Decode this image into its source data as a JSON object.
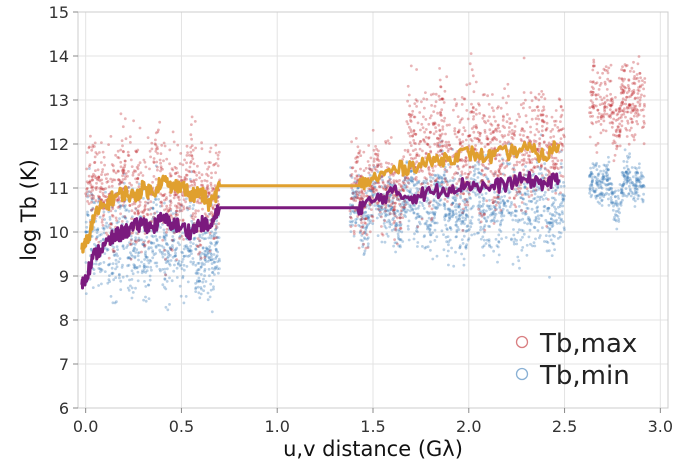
{
  "chart_data": {
    "type": "scatter",
    "xlabel": "u,v distance (Gλ)",
    "ylabel": "log Tb (K)",
    "xlim": [
      -0.04,
      3.04
    ],
    "ylim": [
      6,
      15
    ],
    "xticks": [
      0.0,
      0.5,
      1.0,
      1.5,
      2.0,
      2.5,
      3.0
    ],
    "xtick_labels": [
      "0.0",
      "0.5",
      "1.0",
      "1.5",
      "2.0",
      "2.5",
      "3.0"
    ],
    "yticks": [
      6,
      7,
      8,
      9,
      10,
      11,
      12,
      13,
      14,
      15
    ],
    "ytick_labels": [
      "6",
      "7",
      "8",
      "9",
      "10",
      "11",
      "12",
      "13",
      "14",
      "15"
    ],
    "grid": true,
    "legend_position": "bottom-right",
    "series": [
      {
        "name": "Tb,max",
        "kind": "scatter",
        "color": "#c0282d",
        "clusters": [
          {
            "x": [
              0.0,
              0.7
            ],
            "y_center": 10.9,
            "y_spread": 1.1
          },
          {
            "x": [
              1.38,
              1.68
            ],
            "y_center": 11.0,
            "y_spread": 0.9
          },
          {
            "x": [
              1.68,
              2.5
            ],
            "y_center": 11.9,
            "y_spread": 1.2
          },
          {
            "x": [
              2.63,
              2.92
            ],
            "y_center": 12.9,
            "y_spread": 0.8
          }
        ]
      },
      {
        "name": "Tb,min",
        "kind": "scatter",
        "color": "#3a7bb8",
        "clusters": [
          {
            "x": [
              0.0,
              0.7
            ],
            "y_center": 9.7,
            "y_spread": 1.0
          },
          {
            "x": [
              1.38,
              1.68
            ],
            "y_center": 10.6,
            "y_spread": 0.7
          },
          {
            "x": [
              1.68,
              2.5
            ],
            "y_center": 10.6,
            "y_spread": 0.9
          },
          {
            "x": [
              2.63,
              2.92
            ],
            "y_center": 11.0,
            "y_spread": 0.4
          }
        ]
      },
      {
        "kind": "line",
        "color": "#e0a02f",
        "x": [
          -0.02,
          0.0,
          0.05,
          0.1,
          0.15,
          0.2,
          0.25,
          0.3,
          0.35,
          0.4,
          0.45,
          0.5,
          0.55,
          0.6,
          0.65,
          0.7,
          1.42,
          1.5,
          1.6,
          1.7,
          1.8,
          1.9,
          2.0,
          2.1,
          2.2,
          2.3,
          2.4,
          2.47
        ],
        "y": [
          9.6,
          9.7,
          10.4,
          10.6,
          10.8,
          10.9,
          10.8,
          11.0,
          10.9,
          11.2,
          11.0,
          11.1,
          10.8,
          10.9,
          10.6,
          11.05,
          11.05,
          11.2,
          11.4,
          11.5,
          11.6,
          11.7,
          11.8,
          11.7,
          11.8,
          11.9,
          11.7,
          12.0
        ]
      },
      {
        "kind": "line",
        "color": "#7b1a7e",
        "x": [
          -0.02,
          0.0,
          0.05,
          0.1,
          0.15,
          0.2,
          0.25,
          0.3,
          0.35,
          0.4,
          0.45,
          0.5,
          0.55,
          0.6,
          0.65,
          0.7,
          1.42,
          1.5,
          1.6,
          1.7,
          1.8,
          1.9,
          2.0,
          2.1,
          2.2,
          2.3,
          2.4,
          2.47
        ],
        "y": [
          8.8,
          9.0,
          9.5,
          9.7,
          9.9,
          10.0,
          10.1,
          10.2,
          10.1,
          10.3,
          10.2,
          10.1,
          10.0,
          10.2,
          10.1,
          10.55,
          10.55,
          10.7,
          10.9,
          10.8,
          10.9,
          11.0,
          11.1,
          11.0,
          11.1,
          11.2,
          11.1,
          11.2
        ]
      }
    ],
    "legend": [
      {
        "label": "Tb,max",
        "color": "#c0282d"
      },
      {
        "label": "Tb,min",
        "color": "#3a7bb8"
      }
    ]
  }
}
